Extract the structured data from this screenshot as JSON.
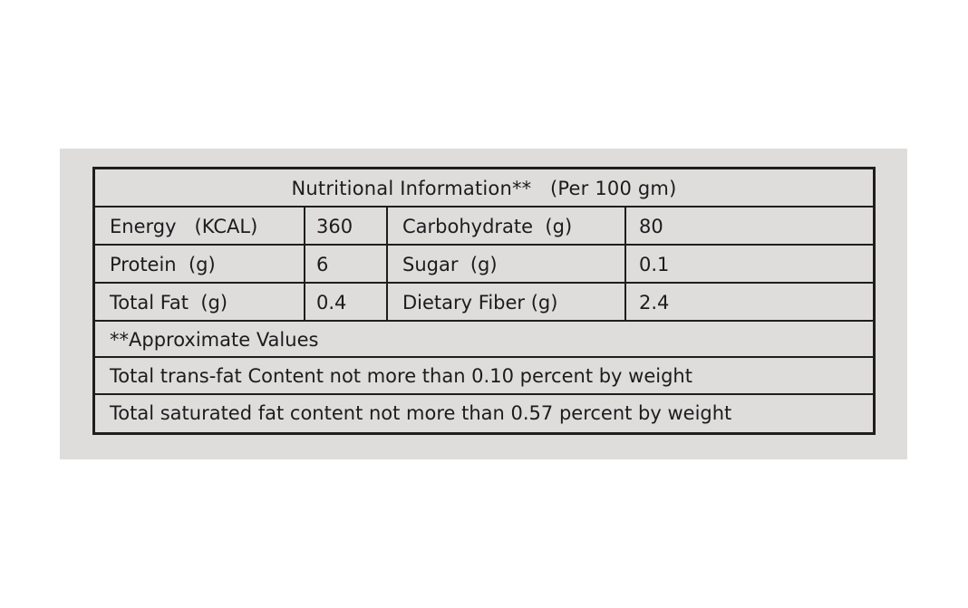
{
  "label": {
    "title": "Nutritional Information**   (Per 100 gm)",
    "rows": [
      {
        "name1": "Energy   (KCAL)",
        "value1": "360",
        "name2": "Carbohydrate  (g)",
        "value2": "80"
      },
      {
        "name1": "Protein  (g)",
        "value1": "6",
        "name2": "Sugar  (g)",
        "value2": "0.1"
      },
      {
        "name1": "Total Fat  (g)",
        "value1": "0.4",
        "name2": "Dietary Fiber (g)",
        "value2": "2.4"
      }
    ],
    "notes": [
      "**Approximate Values",
      "Total trans-fat Content not more than 0.10 percent by weight",
      "Total saturated fat content not more than 0.57 percent by weight"
    ]
  },
  "colors": {
    "panel_background": "#dfdcdc",
    "border": "#1e1e1e",
    "text": "#1c1c1c"
  }
}
